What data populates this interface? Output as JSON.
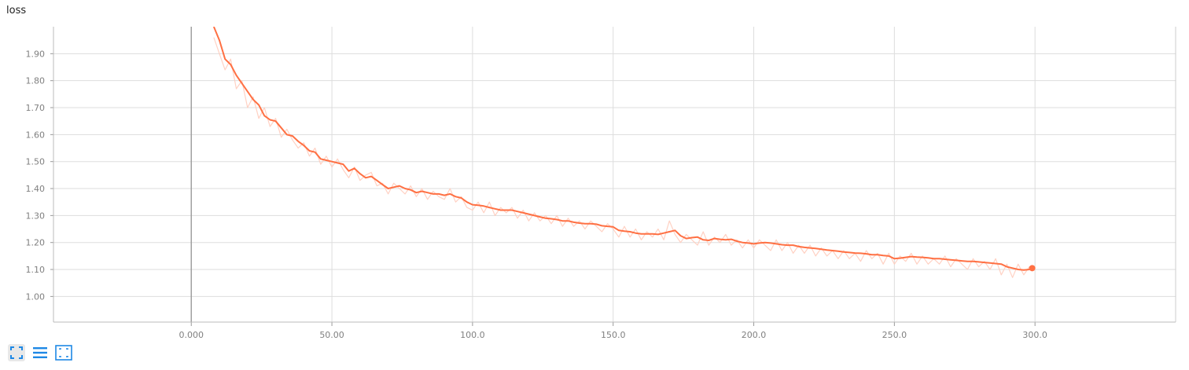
{
  "card": {
    "title": "loss"
  },
  "colors": {
    "line": "#ff7043",
    "raw_line": "#ffccbc",
    "grid": "#dddddd",
    "y_axis_zero": "#a0a0a0",
    "icon": "#1e88e5"
  },
  "controls": [
    {
      "name": "expand-icon",
      "label": "Toggle expanded size"
    },
    {
      "name": "list-icon",
      "label": "Toggle log scale"
    },
    {
      "name": "fit-domain-icon",
      "label": "Fit domain to data"
    }
  ],
  "chart_data": {
    "type": "line",
    "title": "loss",
    "xlabel": "",
    "ylabel": "",
    "xlim": [
      -49.0,
      350.0
    ],
    "ylim": [
      0.905,
      2.0
    ],
    "x_ticks": [
      "0.000",
      "50.00",
      "100.0",
      "150.0",
      "200.0",
      "250.0",
      "300.0"
    ],
    "x_tick_values": [
      0,
      50,
      100,
      150,
      200,
      250,
      300
    ],
    "y_ticks": [
      "1.00",
      "1.10",
      "1.20",
      "1.30",
      "1.40",
      "1.50",
      "1.60",
      "1.70",
      "1.80",
      "1.90"
    ],
    "y_tick_values": [
      1.0,
      1.1,
      1.2,
      1.3,
      1.4,
      1.5,
      1.6,
      1.7,
      1.8,
      1.9
    ],
    "grid": true,
    "series": [
      {
        "style": "smoothed",
        "x": [
          8,
          10,
          12,
          14,
          16,
          18,
          20,
          22,
          24,
          26,
          28,
          30,
          32,
          34,
          36,
          38,
          40,
          42,
          44,
          46,
          48,
          50,
          52,
          54,
          56,
          58,
          60,
          62,
          64,
          66,
          68,
          70,
          72,
          74,
          76,
          78,
          80,
          82,
          84,
          86,
          88,
          90,
          92,
          94,
          96,
          98,
          100,
          102,
          104,
          106,
          108,
          110,
          112,
          114,
          116,
          118,
          120,
          122,
          124,
          126,
          128,
          130,
          132,
          134,
          136,
          138,
          140,
          142,
          144,
          146,
          148,
          150,
          152,
          154,
          156,
          158,
          160,
          162,
          164,
          166,
          168,
          170,
          172,
          174,
          176,
          178,
          180,
          182,
          184,
          186,
          188,
          190,
          192,
          194,
          196,
          198,
          200,
          202,
          204,
          206,
          208,
          210,
          212,
          214,
          216,
          218,
          220,
          222,
          224,
          226,
          228,
          230,
          232,
          234,
          236,
          238,
          240,
          242,
          244,
          246,
          248,
          250,
          252,
          254,
          256,
          258,
          260,
          262,
          264,
          266,
          268,
          270,
          272,
          274,
          276,
          278,
          280,
          282,
          284,
          286,
          288,
          290,
          292,
          294,
          296,
          298,
          299
        ],
        "y": [
          2.0,
          1.95,
          1.88,
          1.86,
          1.82,
          1.79,
          1.76,
          1.73,
          1.71,
          1.67,
          1.655,
          1.65,
          1.625,
          1.6,
          1.595,
          1.575,
          1.56,
          1.54,
          1.535,
          1.51,
          1.505,
          1.5,
          1.495,
          1.49,
          1.465,
          1.475,
          1.455,
          1.44,
          1.445,
          1.43,
          1.415,
          1.4,
          1.405,
          1.41,
          1.4,
          1.395,
          1.385,
          1.39,
          1.385,
          1.38,
          1.38,
          1.375,
          1.38,
          1.37,
          1.365,
          1.35,
          1.34,
          1.338,
          1.335,
          1.33,
          1.325,
          1.32,
          1.32,
          1.32,
          1.315,
          1.31,
          1.305,
          1.3,
          1.295,
          1.29,
          1.288,
          1.285,
          1.28,
          1.28,
          1.275,
          1.272,
          1.27,
          1.27,
          1.268,
          1.262,
          1.26,
          1.258,
          1.245,
          1.242,
          1.24,
          1.235,
          1.232,
          1.232,
          1.232,
          1.23,
          1.235,
          1.24,
          1.245,
          1.225,
          1.215,
          1.218,
          1.22,
          1.21,
          1.208,
          1.215,
          1.212,
          1.21,
          1.212,
          1.205,
          1.2,
          1.198,
          1.195,
          1.198,
          1.2,
          1.198,
          1.195,
          1.192,
          1.19,
          1.19,
          1.185,
          1.182,
          1.18,
          1.178,
          1.175,
          1.172,
          1.17,
          1.168,
          1.165,
          1.163,
          1.161,
          1.16,
          1.158,
          1.155,
          1.155,
          1.152,
          1.15,
          1.14,
          1.142,
          1.145,
          1.148,
          1.146,
          1.145,
          1.143,
          1.14,
          1.14,
          1.138,
          1.136,
          1.134,
          1.132,
          1.13,
          1.13,
          1.128,
          1.126,
          1.124,
          1.122,
          1.12,
          1.11,
          1.105,
          1.1,
          1.098,
          1.1,
          1.105
        ]
      },
      {
        "style": "raw",
        "x": [
          8,
          10,
          12,
          14,
          16,
          18,
          20,
          22,
          24,
          26,
          28,
          30,
          32,
          34,
          36,
          38,
          40,
          42,
          44,
          46,
          48,
          50,
          52,
          54,
          56,
          58,
          60,
          62,
          64,
          66,
          68,
          70,
          72,
          74,
          76,
          78,
          80,
          82,
          84,
          86,
          88,
          90,
          92,
          94,
          96,
          98,
          100,
          102,
          104,
          106,
          108,
          110,
          112,
          114,
          116,
          118,
          120,
          122,
          124,
          126,
          128,
          130,
          132,
          134,
          136,
          138,
          140,
          142,
          144,
          146,
          148,
          150,
          152,
          154,
          156,
          158,
          160,
          162,
          164,
          166,
          168,
          170,
          172,
          174,
          176,
          178,
          180,
          182,
          184,
          186,
          188,
          190,
          192,
          194,
          196,
          198,
          200,
          202,
          204,
          206,
          208,
          210,
          212,
          214,
          216,
          218,
          220,
          222,
          224,
          226,
          228,
          230,
          232,
          234,
          236,
          238,
          240,
          242,
          244,
          246,
          248,
          250,
          252,
          254,
          256,
          258,
          260,
          262,
          264,
          266,
          268,
          270,
          272,
          274,
          276,
          278,
          280,
          282,
          284,
          286,
          288,
          290,
          292,
          294,
          296,
          298,
          299
        ],
        "y": [
          1.96,
          1.9,
          1.84,
          1.88,
          1.77,
          1.8,
          1.7,
          1.74,
          1.66,
          1.7,
          1.63,
          1.66,
          1.59,
          1.62,
          1.58,
          1.55,
          1.57,
          1.52,
          1.55,
          1.49,
          1.52,
          1.48,
          1.51,
          1.47,
          1.44,
          1.48,
          1.43,
          1.45,
          1.46,
          1.41,
          1.42,
          1.38,
          1.42,
          1.4,
          1.38,
          1.41,
          1.37,
          1.4,
          1.36,
          1.39,
          1.37,
          1.36,
          1.4,
          1.35,
          1.37,
          1.33,
          1.32,
          1.35,
          1.31,
          1.35,
          1.3,
          1.33,
          1.31,
          1.33,
          1.29,
          1.32,
          1.28,
          1.31,
          1.28,
          1.3,
          1.27,
          1.3,
          1.26,
          1.29,
          1.26,
          1.28,
          1.25,
          1.28,
          1.26,
          1.24,
          1.27,
          1.25,
          1.22,
          1.26,
          1.22,
          1.25,
          1.21,
          1.24,
          1.22,
          1.25,
          1.21,
          1.28,
          1.23,
          1.2,
          1.23,
          1.21,
          1.19,
          1.24,
          1.19,
          1.22,
          1.2,
          1.23,
          1.19,
          1.21,
          1.18,
          1.21,
          1.18,
          1.21,
          1.19,
          1.17,
          1.21,
          1.17,
          1.2,
          1.16,
          1.19,
          1.16,
          1.19,
          1.15,
          1.18,
          1.15,
          1.17,
          1.14,
          1.17,
          1.14,
          1.16,
          1.13,
          1.17,
          1.14,
          1.16,
          1.12,
          1.16,
          1.12,
          1.15,
          1.13,
          1.16,
          1.12,
          1.15,
          1.12,
          1.14,
          1.12,
          1.15,
          1.11,
          1.14,
          1.12,
          1.1,
          1.14,
          1.11,
          1.13,
          1.1,
          1.14,
          1.08,
          1.12,
          1.07,
          1.12,
          1.08,
          1.11,
          1.1
        ]
      }
    ]
  }
}
